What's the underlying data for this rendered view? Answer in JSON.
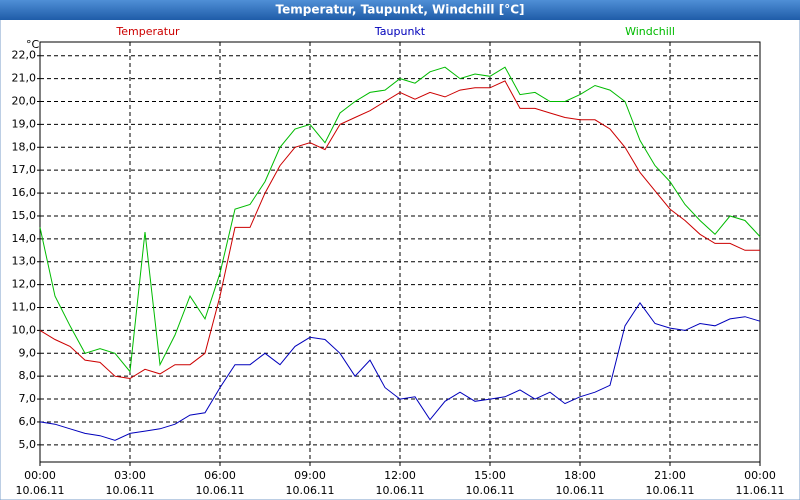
{
  "chart_data": {
    "type": "line",
    "title": "Temperatur, Taupunkt, Windchill [°C]",
    "y_label": "°C",
    "x": [
      0,
      0.5,
      1,
      1.5,
      2,
      2.5,
      3,
      3.5,
      4,
      4.5,
      5,
      5.5,
      6,
      6.5,
      7,
      7.5,
      8,
      8.5,
      9,
      9.5,
      10,
      10.5,
      11,
      11.5,
      12,
      12.5,
      13,
      13.5,
      14,
      14.5,
      15,
      15.5,
      16,
      16.5,
      17,
      17.5,
      18,
      18.5,
      19,
      19.5,
      20,
      20.5,
      21,
      21.5,
      22,
      22.5,
      23,
      23.5,
      24
    ],
    "series": [
      {
        "name": "Temperatur",
        "color": "#cc0000",
        "values": [
          10.0,
          9.6,
          9.3,
          8.7,
          8.6,
          8.0,
          7.9,
          8.3,
          8.1,
          8.5,
          8.5,
          9.0,
          11.5,
          14.5,
          14.5,
          16.0,
          17.2,
          18.0,
          18.2,
          17.9,
          19.0,
          19.3,
          19.6,
          20.0,
          20.4,
          20.1,
          20.4,
          20.2,
          20.5,
          20.6,
          20.6,
          20.9,
          19.7,
          19.7,
          19.5,
          19.3,
          19.2,
          19.2,
          18.8,
          18.0,
          16.9,
          16.1,
          15.3,
          14.8,
          14.2,
          13.8,
          13.8,
          13.5,
          13.5
        ]
      },
      {
        "name": "Taupunkt",
        "color": "#0000bb",
        "values": [
          6.0,
          5.9,
          5.7,
          5.5,
          5.4,
          5.2,
          5.5,
          5.6,
          5.7,
          5.9,
          6.3,
          6.4,
          7.5,
          8.5,
          8.5,
          9.0,
          8.5,
          9.3,
          9.7,
          9.6,
          9.0,
          8.0,
          8.7,
          7.5,
          7.0,
          7.1,
          6.1,
          6.9,
          7.3,
          6.9,
          7.0,
          7.1,
          7.4,
          7.0,
          7.3,
          6.8,
          7.1,
          7.3,
          7.6,
          10.2,
          11.2,
          10.3,
          10.1,
          10.0,
          10.3,
          10.2,
          10.5,
          10.6,
          10.4
        ]
      },
      {
        "name": "Windchill",
        "color": "#00bb00",
        "values": [
          14.5,
          11.5,
          10.2,
          9.0,
          9.2,
          9.0,
          8.2,
          14.3,
          8.5,
          9.8,
          11.5,
          10.5,
          12.5,
          15.3,
          15.5,
          16.5,
          18.0,
          18.8,
          19.0,
          18.2,
          19.5,
          20.0,
          20.4,
          20.5,
          21.0,
          20.8,
          21.3,
          21.5,
          21.0,
          21.2,
          21.1,
          21.5,
          20.3,
          20.4,
          20.0,
          20.0,
          20.3,
          20.7,
          20.5,
          20.0,
          18.3,
          17.2,
          16.5,
          15.5,
          14.8,
          14.2,
          15.0,
          14.8,
          14.1
        ]
      }
    ],
    "xlim": [
      0,
      24
    ],
    "xticks": [
      {
        "value": 0,
        "label": "00:00",
        "date": "10.06.11"
      },
      {
        "value": 3,
        "label": "03:00",
        "date": "10.06.11"
      },
      {
        "value": 6,
        "label": "06:00",
        "date": "10.06.11"
      },
      {
        "value": 9,
        "label": "09:00",
        "date": "10.06.11"
      },
      {
        "value": 12,
        "label": "12:00",
        "date": "10.06.11"
      },
      {
        "value": 15,
        "label": "15:00",
        "date": "10.06.11"
      },
      {
        "value": 18,
        "label": "18:00",
        "date": "10.06.11"
      },
      {
        "value": 21,
        "label": "21:00",
        "date": "10.06.11"
      },
      {
        "value": 24,
        "label": "00:00",
        "date": "11.06.11"
      }
    ],
    "ylim": [
      4.25,
      22.6
    ],
    "yticks": [
      {
        "value": 5,
        "label": "5,0"
      },
      {
        "value": 6,
        "label": "6,0"
      },
      {
        "value": 7,
        "label": "7,0"
      },
      {
        "value": 8,
        "label": "8,0"
      },
      {
        "value": 9,
        "label": "9,0"
      },
      {
        "value": 10,
        "label": "10,0"
      },
      {
        "value": 11,
        "label": "11,0"
      },
      {
        "value": 12,
        "label": "12,0"
      },
      {
        "value": 13,
        "label": "13,0"
      },
      {
        "value": 14,
        "label": "14,0"
      },
      {
        "value": 15,
        "label": "15,0"
      },
      {
        "value": 16,
        "label": "16,0"
      },
      {
        "value": 17,
        "label": "17,0"
      },
      {
        "value": 18,
        "label": "18,0"
      },
      {
        "value": 19,
        "label": "19,0"
      },
      {
        "value": 20,
        "label": "20,0"
      },
      {
        "value": 21,
        "label": "21,0"
      },
      {
        "value": 22,
        "label": "22,0"
      }
    ],
    "grid": true
  }
}
